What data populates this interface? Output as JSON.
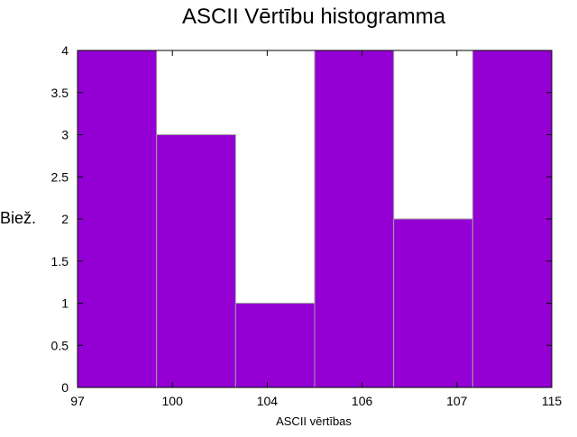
{
  "chart_data": {
    "type": "bar",
    "title": "ASCII Vērtību histogramma",
    "xlabel": "ASCII vērtības",
    "ylabel": "Biež.",
    "categories": [
      "97",
      "100",
      "104",
      "106",
      "107",
      "115"
    ],
    "values": [
      4,
      3,
      1,
      4,
      2,
      4
    ],
    "x_tick_labels": [
      "97",
      "100",
      "104",
      "106",
      "107",
      "115"
    ],
    "y_tick_labels": [
      "0",
      "0.5",
      "1",
      "1.5",
      "2",
      "2.5",
      "3",
      "3.5",
      "4"
    ],
    "ylim": [
      0,
      4
    ],
    "bar_color": "#9400d3",
    "bar_edge_color": "#a0a0a0",
    "grid": false,
    "legend": "none"
  }
}
